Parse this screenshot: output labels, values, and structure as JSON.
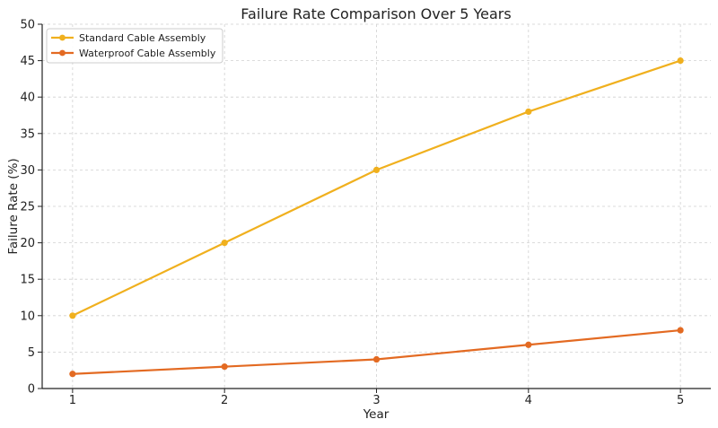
{
  "chart_data": {
    "type": "line",
    "title": "Failure Rate Comparison Over 5 Years",
    "xlabel": "Year",
    "ylabel": "Failure Rate (%)",
    "x": [
      1,
      2,
      3,
      4,
      5
    ],
    "xticks": [
      "1",
      "2",
      "3",
      "4",
      "5"
    ],
    "yticks": [
      0,
      5,
      10,
      15,
      20,
      25,
      30,
      35,
      40,
      45,
      50
    ],
    "xlim": [
      0.8,
      5.2
    ],
    "ylim": [
      0,
      50
    ],
    "grid": true,
    "legend_position": "top-left",
    "series": [
      {
        "name": "Standard Cable Assembly",
        "values": [
          10,
          20,
          30,
          38,
          45
        ],
        "color": "#f0b01e",
        "marker": "circle"
      },
      {
        "name": "Waterproof Cable Assembly",
        "values": [
          2,
          3,
          4,
          6,
          8
        ],
        "color": "#e36a22",
        "marker": "circle"
      }
    ]
  }
}
